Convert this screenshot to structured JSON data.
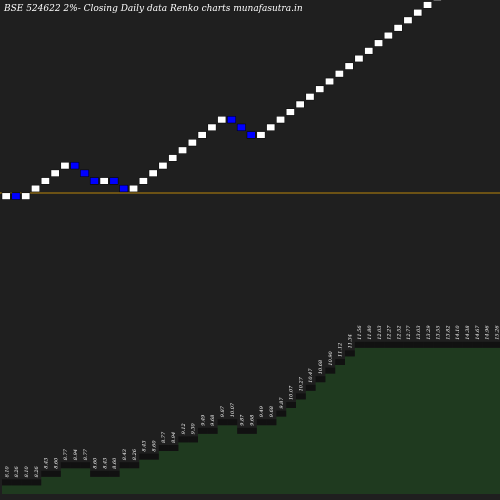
{
  "header": {
    "title": "BSE 524622  2%-  Closing Daily data  Renko  charts munafasutra.in"
  },
  "colors": {
    "background": "#000000",
    "panel": "#1f1f1f",
    "up_brick": "#ffffff",
    "down_brick": "#0000ff",
    "ref_line": "#b8860b",
    "volume_fill": "#1f3a1f",
    "label": "#ffffff"
  },
  "chart_data": {
    "type": "renko",
    "title": "BSE 524622  2%-  Closing Daily data  Renko  charts munafasutra.in",
    "bricks": [
      {
        "dir": "up",
        "label": "8.10"
      },
      {
        "dir": "down",
        "label": "8.26"
      },
      {
        "dir": "up",
        "label": "8.10"
      },
      {
        "dir": "up",
        "label": "8.26"
      },
      {
        "dir": "up",
        "label": "8.43"
      },
      {
        "dir": "up",
        "label": "8.60"
      },
      {
        "dir": "up",
        "label": "8.77"
      },
      {
        "dir": "down",
        "label": "8.94"
      },
      {
        "dir": "down",
        "label": "8.77"
      },
      {
        "dir": "down",
        "label": "8.60"
      },
      {
        "dir": "up",
        "label": "8.43"
      },
      {
        "dir": "down",
        "label": "8.60"
      },
      {
        "dir": "down",
        "label": "8.43"
      },
      {
        "dir": "up",
        "label": "8.26"
      },
      {
        "dir": "up",
        "label": "8.43"
      },
      {
        "dir": "up",
        "label": "8.60"
      },
      {
        "dir": "up",
        "label": "8.77"
      },
      {
        "dir": "up",
        "label": "8.94"
      },
      {
        "dir": "up",
        "label": "9.12"
      },
      {
        "dir": "up",
        "label": "9.30"
      },
      {
        "dir": "up",
        "label": "9.49"
      },
      {
        "dir": "up",
        "label": "9.68"
      },
      {
        "dir": "up",
        "label": "9.87"
      },
      {
        "dir": "down",
        "label": "10.07"
      },
      {
        "dir": "down",
        "label": "9.87"
      },
      {
        "dir": "down",
        "label": "9.68"
      },
      {
        "dir": "up",
        "label": "9.49"
      },
      {
        "dir": "up",
        "label": "9.68"
      },
      {
        "dir": "up",
        "label": "9.87"
      },
      {
        "dir": "up",
        "label": "10.07"
      },
      {
        "dir": "up",
        "label": "10.27"
      },
      {
        "dir": "up",
        "label": "10.47"
      },
      {
        "dir": "up",
        "label": "10.68"
      },
      {
        "dir": "up",
        "label": "10.90"
      },
      {
        "dir": "up",
        "label": "11.12"
      },
      {
        "dir": "up",
        "label": "11.34"
      },
      {
        "dir": "up",
        "label": "11.56"
      },
      {
        "dir": "up",
        "label": "11.80"
      },
      {
        "dir": "up",
        "label": "12.03"
      },
      {
        "dir": "up",
        "label": "12.27"
      },
      {
        "dir": "up",
        "label": "12.52"
      },
      {
        "dir": "up",
        "label": "12.77"
      },
      {
        "dir": "up",
        "label": "13.03"
      },
      {
        "dir": "up",
        "label": "13.29"
      },
      {
        "dir": "up",
        "label": "13.55"
      },
      {
        "dir": "up",
        "label": "13.82"
      },
      {
        "dir": "up",
        "label": "14.10"
      },
      {
        "dir": "up",
        "label": "14.38"
      },
      {
        "dir": "up",
        "label": "14.67"
      },
      {
        "dir": "up",
        "label": "14.96"
      },
      {
        "dir": "up",
        "label": "15.26"
      },
      {
        "dir": "up",
        "label": "15.57"
      }
    ],
    "reference_lines": [
      15.57,
      8.26
    ],
    "volume_profile": [
      1,
      1,
      1,
      1,
      2,
      2,
      3,
      3,
      3,
      2,
      2,
      2,
      3,
      3,
      4,
      4,
      5,
      5,
      6,
      6,
      7,
      7,
      8,
      8,
      7,
      7,
      8,
      8,
      9,
      10,
      11,
      12,
      13,
      14,
      15,
      16,
      17,
      17,
      17,
      17,
      17,
      17,
      17,
      17,
      17,
      17,
      17,
      17,
      17,
      17,
      17,
      17
    ]
  }
}
